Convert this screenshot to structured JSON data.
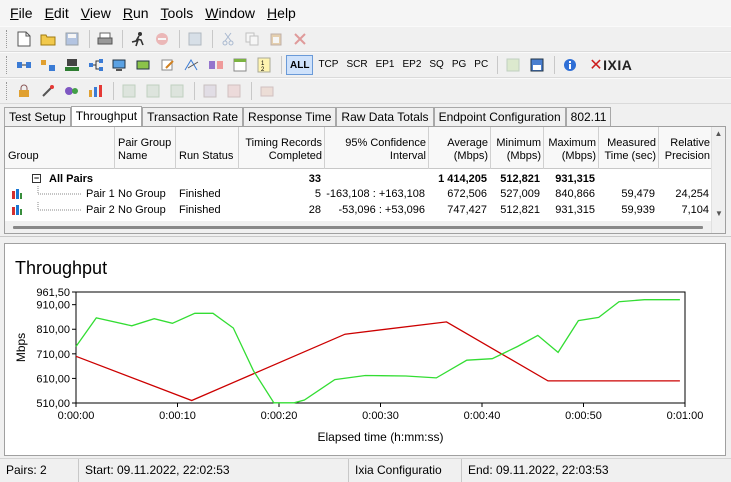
{
  "menu": [
    "File",
    "Edit",
    "View",
    "Run",
    "Tools",
    "Window",
    "Help"
  ],
  "menu_underline": [
    "F",
    "E",
    "V",
    "R",
    "T",
    "W",
    "H"
  ],
  "toolbar1": {
    "icons": [
      "new-file-icon",
      "open-folder-icon",
      "save-icon",
      "print-icon",
      "run-icon",
      "stop-icon",
      "refresh-icon",
      "cut-icon",
      "copy-icon",
      "paste-icon",
      "delete-icon"
    ]
  },
  "toolbar2": {
    "protocol_buttons": [
      "ALL",
      "TCP",
      "SCR",
      "EP1",
      "EP2",
      "SQ",
      "PG",
      "PC"
    ],
    "active_protocol": "ALL",
    "brand": "IXIA"
  },
  "tabs": [
    "Test Setup",
    "Throughput",
    "Transaction Rate",
    "Response Time",
    "Raw Data Totals",
    "Endpoint Configuration",
    "802.11"
  ],
  "active_tab": "Throughput",
  "table": {
    "columns": [
      {
        "key": "group",
        "label": "Group"
      },
      {
        "key": "pair_group_name",
        "label": "Pair Group Name"
      },
      {
        "key": "run_status",
        "label": "Run Status"
      },
      {
        "key": "timing_records",
        "label": "Timing Records Completed"
      },
      {
        "key": "confidence",
        "label": "95% Confidence Interval"
      },
      {
        "key": "average",
        "label": "Average (Mbps)"
      },
      {
        "key": "minimum",
        "label": "Minimum (Mbps)"
      },
      {
        "key": "maximum",
        "label": "Maximum (Mbps)"
      },
      {
        "key": "measured_time",
        "label": "Measured Time (sec)"
      },
      {
        "key": "relative_precision",
        "label": "Relative Precision"
      }
    ],
    "summary": {
      "group": "All Pairs",
      "timing_records": "33",
      "average": "1 414,205",
      "minimum": "512,821",
      "maximum": "931,315"
    },
    "rows": [
      {
        "group": "Pair 1",
        "pair_group_name": "No Group",
        "run_status": "Finished",
        "timing_records": "5",
        "confidence": "-163,108 : +163,108",
        "average": "672,506",
        "minimum": "527,009",
        "maximum": "840,866",
        "measured_time": "59,479",
        "relative_precision": "24,254"
      },
      {
        "group": "Pair 2",
        "pair_group_name": "No Group",
        "run_status": "Finished",
        "timing_records": "28",
        "confidence": "-53,096 : +53,096",
        "average": "747,427",
        "minimum": "512,821",
        "maximum": "931,315",
        "measured_time": "59,939",
        "relative_precision": "7,104"
      }
    ]
  },
  "chart_data": {
    "type": "line",
    "title": "Throughput",
    "xlabel": "Elapsed time (h:mm:ss)",
    "ylabel": "Mbps",
    "x_ticks": [
      "0:00:00",
      "0:00:10",
      "0:00:20",
      "0:00:30",
      "0:00:40",
      "0:00:50",
      "0:01:00"
    ],
    "y_ticks": [
      "510,00",
      "610,00",
      "710,00",
      "810,00",
      "910,00",
      "961,50"
    ],
    "y_tick_values": [
      510,
      610,
      710,
      810,
      910,
      961.5
    ],
    "xlim": [
      0,
      60
    ],
    "ylim": [
      510,
      961.5
    ],
    "grid": false,
    "series": [
      {
        "color": "#cc0000",
        "points": [
          [
            0,
            700
          ],
          [
            11.4,
            520
          ],
          [
            26.5,
            790
          ],
          [
            36.5,
            840
          ],
          [
            46.5,
            600
          ],
          [
            59.5,
            600
          ]
        ]
      },
      {
        "color": "#33dd33",
        "points": [
          [
            0,
            740
          ],
          [
            2,
            856
          ],
          [
            5.5,
            824
          ],
          [
            7.7,
            853
          ],
          [
            9.5,
            834
          ],
          [
            11.7,
            875
          ],
          [
            13.5,
            875
          ],
          [
            15.5,
            815
          ],
          [
            17.5,
            640
          ],
          [
            19.5,
            511
          ],
          [
            21.5,
            511
          ],
          [
            22.5,
            522
          ],
          [
            25.5,
            605
          ],
          [
            28.5,
            622
          ],
          [
            32.5,
            620
          ],
          [
            35.5,
            612
          ],
          [
            38.5,
            684
          ],
          [
            41,
            690
          ],
          [
            43.5,
            740
          ],
          [
            45.5,
            785
          ],
          [
            47.5,
            716
          ],
          [
            49.5,
            845
          ],
          [
            51.5,
            858
          ],
          [
            53.5,
            922
          ],
          [
            56,
            930
          ],
          [
            59.5,
            930
          ]
        ]
      }
    ]
  },
  "status": {
    "pairs": "Pairs: 2",
    "start": "Start: 09.11.2022, 22:02:53",
    "config": "Ixia Configuratio",
    "end": "End: 09.11.2022, 22:03:53"
  }
}
